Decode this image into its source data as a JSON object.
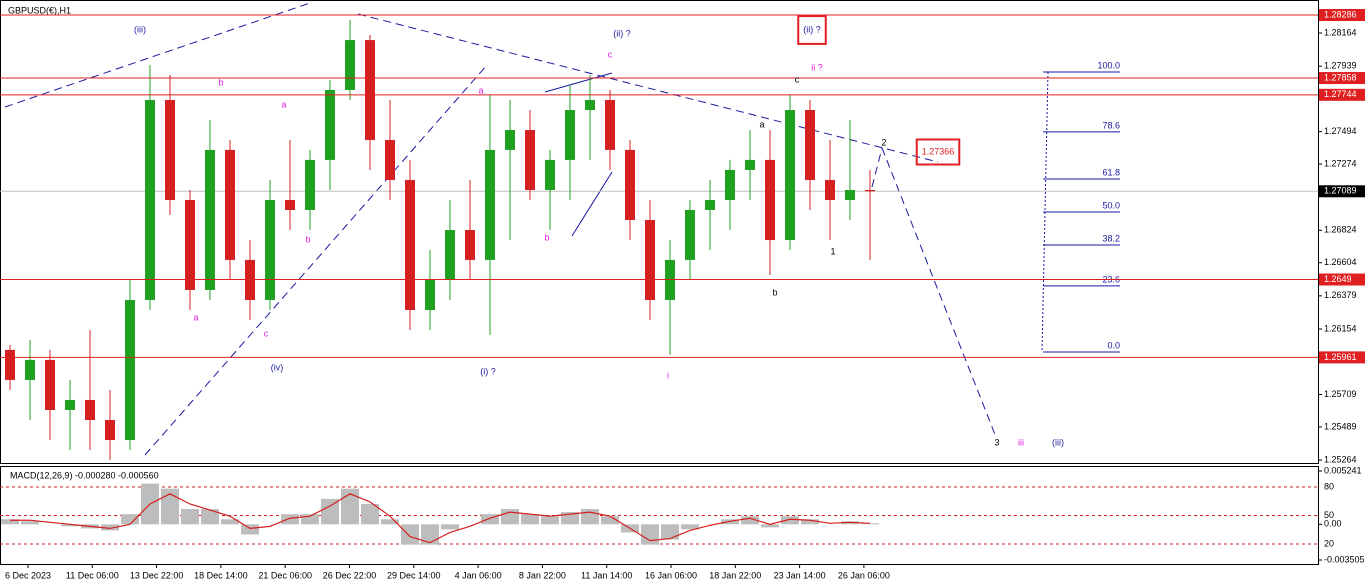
{
  "chart_data": {
    "type": "candlestick",
    "title": "GBPUSD(€),H1",
    "up_color": "#20a020",
    "down_color": "#d42020",
    "ylim": [
      1.25244,
      1.28388
    ],
    "yticks": [
      1.28164,
      1.27939,
      1.27494,
      1.27274,
      1.26824,
      1.26604,
      1.26379,
      1.26154,
      1.25709,
      1.25489,
      1.25264
    ],
    "xtick_labels": [
      "6 Dec 2023",
      "11 Dec 06:00",
      "13 Dec 22:00",
      "18 Dec 14:00",
      "21 Dec 06:00",
      "26 Dec 22:00",
      "29 Dec 14:00",
      "4 Jan 06:00",
      "8 Jan 22:00",
      "11 Jan 14:00",
      "16 Jan 06:00",
      "18 Jan 22:00",
      "23 Jan 14:00",
      "26 Jan 06:00"
    ],
    "open": [
      1.26012,
      1.25808,
      1.25944,
      1.25604,
      1.25672,
      1.25536,
      1.254,
      1.26351,
      1.27709,
      1.2703,
      1.26419,
      1.2737,
      1.26623,
      1.26351,
      1.2703,
      1.26962,
      1.27302,
      1.27777,
      1.28116,
      1.27437,
      1.27166,
      1.26283,
      1.26487,
      1.26826,
      1.26623,
      1.2737,
      1.27505,
      1.27098,
      1.27302,
      1.27641,
      1.27709,
      1.2737,
      1.26894,
      1.26351,
      1.26623,
      1.26962,
      1.2703,
      1.27234,
      1.27302,
      1.26758,
      1.27641,
      1.27166,
      1.2703,
      1.27098
    ],
    "high": [
      1.26045,
      1.26079,
      1.26012,
      1.25808,
      1.26147,
      1.2574,
      1.26487,
      1.27947,
      1.27879,
      1.27098,
      1.27573,
      1.27437,
      1.26758,
      1.27166,
      1.27437,
      1.2737,
      1.27845,
      1.28252,
      1.2815,
      1.27709,
      1.27302,
      1.26691,
      1.2703,
      1.27166,
      1.27743,
      1.27709,
      1.27641,
      1.2737,
      1.27811,
      1.27879,
      1.27777,
      1.27437,
      1.2703,
      1.26758,
      1.2703,
      1.27166,
      1.27302,
      1.27505,
      1.27505,
      1.27743,
      1.27709,
      1.27437,
      1.27573,
      1.27234
    ],
    "low": [
      1.2574,
      1.25536,
      1.254,
      1.25333,
      1.25333,
      1.25265,
      1.25333,
      1.26283,
      1.26928,
      1.26283,
      1.26351,
      1.26487,
      1.26215,
      1.26283,
      1.26826,
      1.26826,
      1.27098,
      1.27709,
      1.27234,
      1.2703,
      1.26147,
      1.26147,
      1.26351,
      1.26487,
      1.26113,
      1.26758,
      1.2703,
      1.26826,
      1.2703,
      1.27302,
      1.27234,
      1.26758,
      1.26215,
      1.25978,
      1.26487,
      1.26691,
      1.26826,
      1.2703,
      1.26521,
      1.26691,
      1.26962,
      1.26758,
      1.26894,
      1.26623
    ],
    "close": [
      1.25808,
      1.25944,
      1.25604,
      1.25672,
      1.25536,
      1.254,
      1.26351,
      1.27709,
      1.2703,
      1.26419,
      1.2737,
      1.26623,
      1.26351,
      1.2703,
      1.26962,
      1.27302,
      1.27777,
      1.28116,
      1.27437,
      1.27166,
      1.26283,
      1.26487,
      1.26826,
      1.26623,
      1.2737,
      1.27505,
      1.27098,
      1.27302,
      1.27641,
      1.27709,
      1.2737,
      1.26894,
      1.26351,
      1.26623,
      1.26962,
      1.2703,
      1.27234,
      1.27302,
      1.26758,
      1.27641,
      1.27166,
      1.2703,
      1.27098,
      1.27089
    ],
    "levels": [
      1.28286,
      1.27858,
      1.27744,
      1.2649,
      1.25961
    ],
    "level_color": "#e02020",
    "last_price": 1.27089,
    "fib_range": [
      1.25998,
      1.27899
    ],
    "fib_levels": [
      {
        "value": 100,
        "label": "100.0"
      },
      {
        "value": 78.6,
        "label": "78.6"
      },
      {
        "value": 61.8,
        "label": "61.8"
      },
      {
        "value": 50,
        "label": "50.0"
      },
      {
        "value": 38.2,
        "label": "38.2"
      },
      {
        "value": 23.6,
        "label": "23.6"
      },
      {
        "value": 0,
        "label": "0.0"
      }
    ],
    "annotations": [
      {
        "text": "(iii)",
        "color": "#1a1aa0"
      },
      {
        "text": "(ii) ?",
        "color": "#1a1aa0"
      },
      {
        "text": "c",
        "color": "#e020e0"
      },
      {
        "text": "(ii) ?",
        "color": "#1a1aa0",
        "boxed": true
      },
      {
        "text": "ii ?",
        "color": "#e020e0"
      },
      {
        "text": "c",
        "color": "#000000"
      },
      {
        "text": "a",
        "color": "#000000"
      },
      {
        "text": "2",
        "color": "#000000"
      },
      {
        "text": "1.27366",
        "color": "#e02020",
        "boxed": true
      },
      {
        "text": "1",
        "color": "#000000"
      },
      {
        "text": "b",
        "color": "#000000"
      },
      {
        "text": "b",
        "color": "#e020e0"
      },
      {
        "text": "a",
        "color": "#e020e0"
      },
      {
        "text": "a",
        "color": "#e020e0"
      },
      {
        "text": "b",
        "color": "#e020e0"
      },
      {
        "text": "b",
        "color": "#e020e0"
      },
      {
        "text": "a",
        "color": "#e020e0"
      },
      {
        "text": "c",
        "color": "#e020e0"
      },
      {
        "text": "(iv)",
        "color": "#1a1aa0"
      },
      {
        "text": "(i) ?",
        "color": "#1a1aa0"
      },
      {
        "text": "i",
        "color": "#e020e0"
      },
      {
        "text": "3",
        "color": "#000000"
      },
      {
        "text": "iii",
        "color": "#e020e0"
      },
      {
        "text": "(iii)",
        "color": "#1a1aa0"
      }
    ],
    "macd": {
      "label": "MACD(12,26,9) -0.000280 -0.000560",
      "ylim": [
        -0.003505,
        0.005241
      ],
      "yticks": [
        0.005241,
        {
          "value": 0,
          "label": "0.00"
        },
        -0.003505
      ],
      "y2lim": [
        0,
        100
      ],
      "y2ticks": [
        80,
        50,
        20
      ],
      "histogram": [
        0.0005,
        0.0003,
        0.0,
        -0.0002,
        -0.0004,
        -0.0006,
        0.001,
        0.004,
        0.0035,
        0.0015,
        0.0015,
        0.0005,
        -0.001,
        0.0,
        0.001,
        0.001,
        0.0025,
        0.0035,
        0.002,
        0.0005,
        -0.002,
        -0.002,
        -0.0005,
        0.0,
        0.001,
        0.0015,
        0.001,
        0.0008,
        0.0012,
        0.0015,
        0.0008,
        -0.0008,
        -0.002,
        -0.0015,
        -0.0005,
        0.0,
        0.0005,
        0.0008,
        -0.0003,
        0.0008,
        0.0005,
        0.0,
        0.0003,
        0.0001
      ],
      "signal": [
        0.0004,
        0.0004,
        0.0002,
        0.0,
        -0.0002,
        -0.0004,
        0.0,
        0.002,
        0.003,
        0.002,
        0.0014,
        0.0008,
        -0.0004,
        -0.0002,
        0.0006,
        0.0008,
        0.0018,
        0.003,
        0.0022,
        0.0008,
        -0.0012,
        -0.0018,
        -0.0008,
        -0.0002,
        0.0006,
        0.0012,
        0.001,
        0.0008,
        0.001,
        0.0012,
        0.0008,
        -0.0004,
        -0.0016,
        -0.0014,
        -0.0006,
        -0.0001,
        0.0003,
        0.0006,
        0.0,
        0.0005,
        0.0004,
        0.0001,
        0.0002,
        0.0001
      ]
    }
  }
}
